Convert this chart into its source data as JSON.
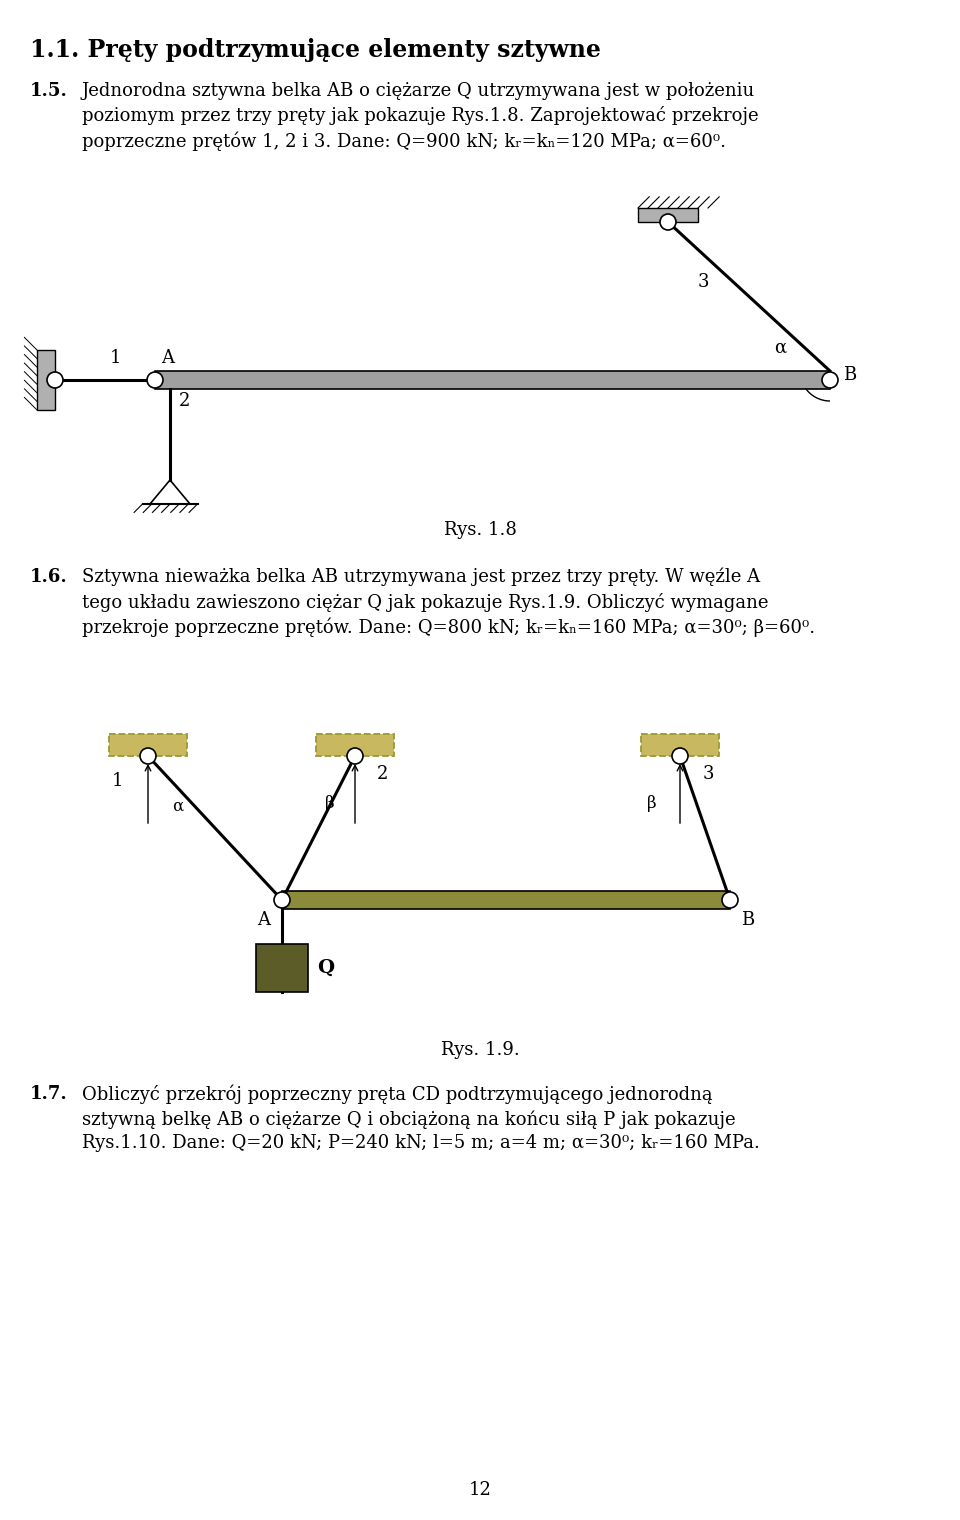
{
  "page_title": "1.1. Pręty podtrzymujące elementy sztywne",
  "bg_color": "#ffffff",
  "fig1_caption": "Rys. 1.8",
  "fig2_caption": "Rys. 1.9.",
  "page_number": "12",
  "beam_gray": "#a0a0a0",
  "beam_olive": "#8b8b3a",
  "Q_box_color": "#5c5c28",
  "dashed_fill": "#c8b860",
  "dashed_edge": "#999933",
  "black": "#000000",
  "white": "#ffffff",
  "wall_gray": "#b0b0b0"
}
